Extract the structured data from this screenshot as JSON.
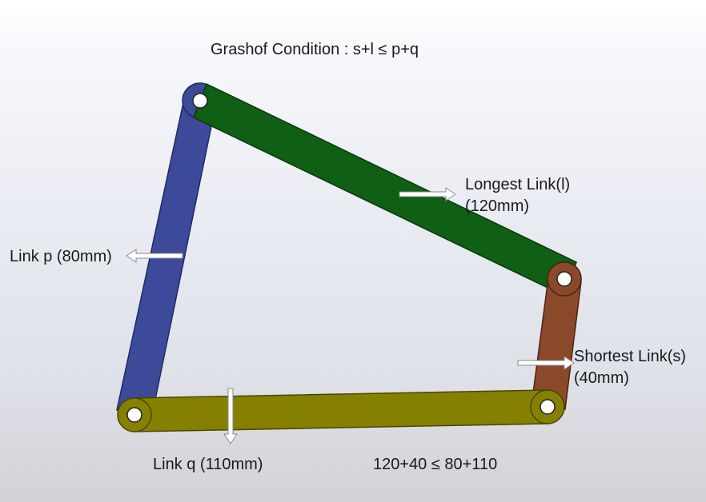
{
  "title": "Grashof Condition : s+l ≤ p+q",
  "labels": {
    "longest_link": "Longest Link(l)",
    "longest_link_length": "(120mm)",
    "link_p": "Link p (80mm)",
    "shortest_link": "Shortest Link(s)",
    "shortest_link_length": "(40mm)",
    "link_q": "Link q (110mm)",
    "equation": "120+40 ≤ 80+110"
  },
  "colors": {
    "link_p": "#3d4a9a",
    "longest_link": "#0f5f14",
    "shortest_link": "#8a4a2a",
    "link_q": "#858000",
    "arrow_fill": "#ffffff",
    "arrow_stroke": "#8a8a8a"
  }
}
